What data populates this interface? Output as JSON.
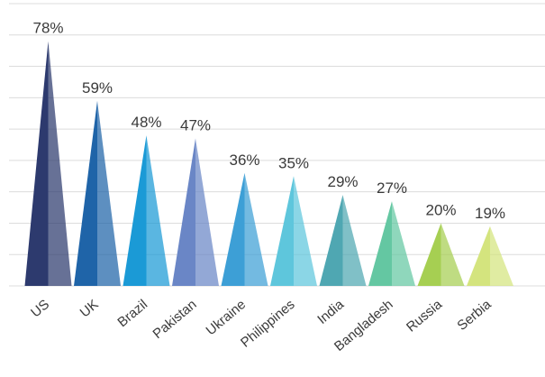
{
  "chart_data": {
    "type": "bar",
    "categories": [
      "US",
      "UK",
      "Brazil",
      "Pakistan",
      "Ukraine",
      "Philippines",
      "India",
      "Bangladesh",
      "Russia",
      "Serbia"
    ],
    "values": [
      78,
      59,
      48,
      47,
      36,
      35,
      29,
      27,
      20,
      19
    ],
    "value_labels": [
      "78%",
      "59%",
      "48%",
      "47%",
      "36%",
      "35%",
      "29%",
      "27%",
      "20%",
      "19%"
    ],
    "ylim": [
      0,
      90
    ],
    "grid": true,
    "bar_shape": "cone",
    "colors": [
      "#2d3a6e",
      "#1f64a8",
      "#1b9ad6",
      "#6a86c6",
      "#3d9fd6",
      "#5ec6dc",
      "#4fa7b2",
      "#64c7a2",
      "#a6cf52",
      "#d4e47e"
    ],
    "grid_color": "#dcdcdc"
  }
}
